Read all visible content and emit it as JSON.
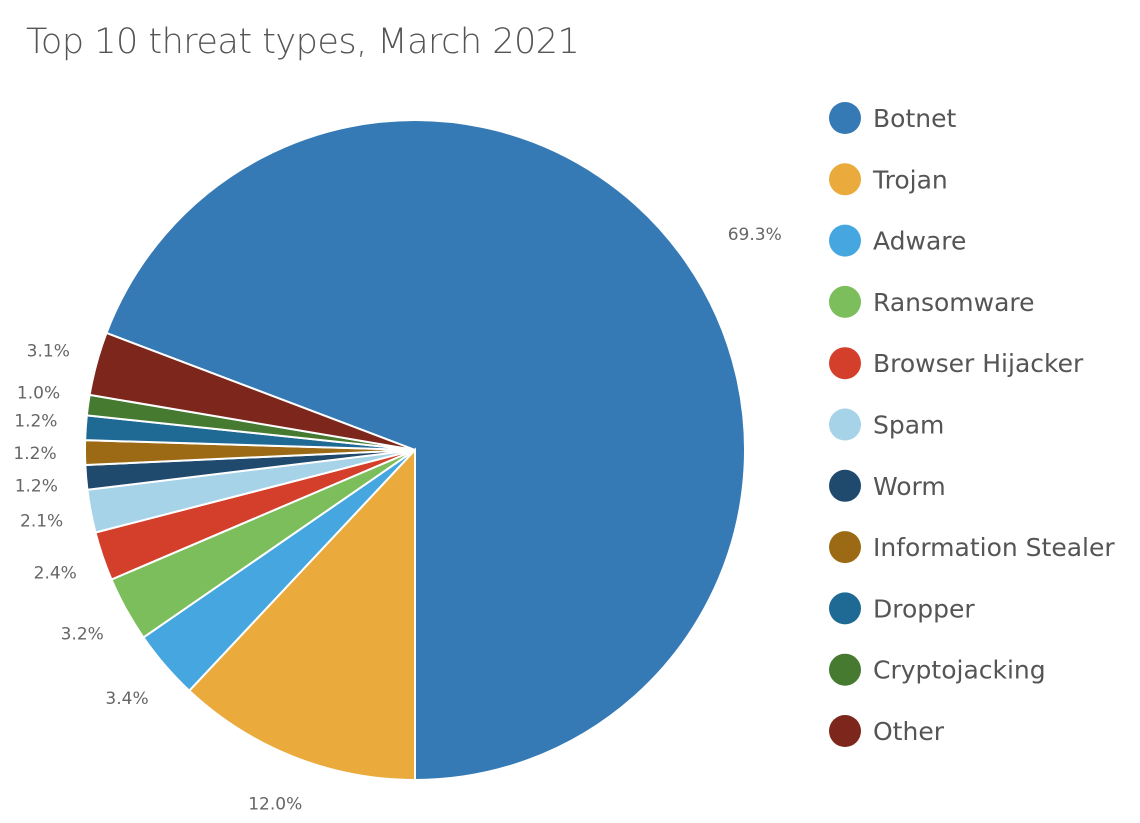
{
  "chart_data": {
    "type": "pie",
    "title": "Top 10 threat types, March 2021",
    "legend_position": "right",
    "start_angle_note": "clockwise",
    "slices": [
      {
        "label": "Botnet",
        "value": 69.3,
        "display": "69.3%",
        "color": "#357AB5"
      },
      {
        "label": "Trojan",
        "value": 12.0,
        "display": "12.0%",
        "color": "#EAAA3C"
      },
      {
        "label": "Adware",
        "value": 3.4,
        "display": "3.4%",
        "color": "#46A6DF"
      },
      {
        "label": "Ransomware",
        "value": 3.2,
        "display": "3.2%",
        "color": "#7CBD5C"
      },
      {
        "label": "Browser Hijacker",
        "value": 2.4,
        "display": "2.4%",
        "color": "#D33F2B"
      },
      {
        "label": "Spam",
        "value": 2.1,
        "display": "2.1%",
        "color": "#A6D3E8"
      },
      {
        "label": "Worm",
        "value": 1.2,
        "display": "1.2%",
        "color": "#1F4A6E"
      },
      {
        "label": "Information Stealer",
        "value": 1.2,
        "display": "1.2%",
        "color": "#9C6A14"
      },
      {
        "label": "Dropper",
        "value": 1.2,
        "display": "1.2%",
        "color": "#1E6A94"
      },
      {
        "label": "Cryptojacking",
        "value": 1.0,
        "display": "1.0%",
        "color": "#467A30"
      },
      {
        "label": "Other",
        "value": 3.1,
        "display": "3.1%",
        "color": "#7D261C"
      }
    ]
  }
}
